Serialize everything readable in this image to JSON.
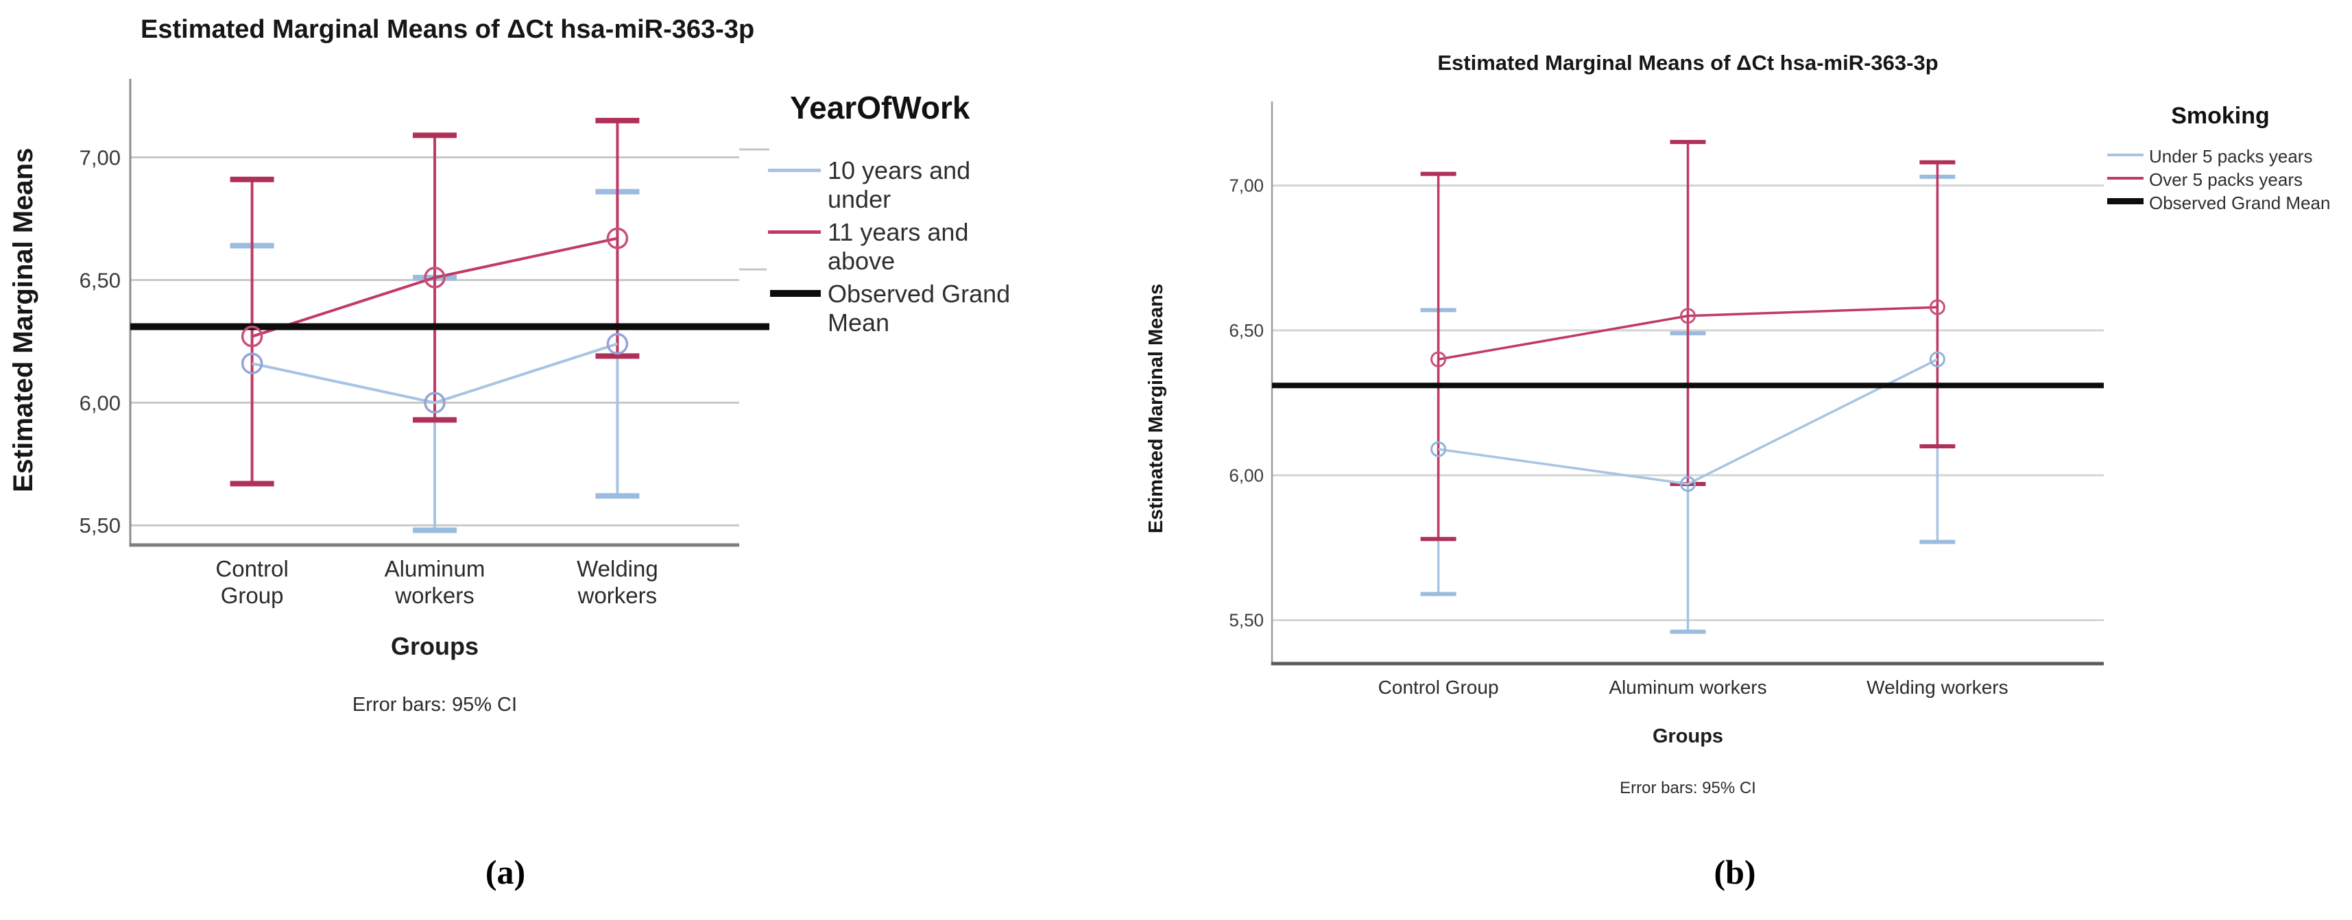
{
  "figure": {
    "background": "#ffffff",
    "captions": {
      "a": "(a)",
      "b": "(b)"
    }
  },
  "chart_data": [
    {
      "type": "line",
      "panel_label": "(a)",
      "title": "Estimated Marginal Means of ΔCt hsa-miR-363-3p",
      "xlabel": "Groups",
      "ylabel": "Estimated Marginal Means",
      "footnote": "Error bars: 95% CI",
      "legend_title": "YearOfWork",
      "legend_position": "right",
      "grid": true,
      "categories": [
        "Control Group",
        "Aluminum workers",
        "Welding workers"
      ],
      "categories_display": [
        "Control\nGroup",
        "Aluminum\nworkers",
        "Welding\nworkers"
      ],
      "ylim": [
        5.42,
        7.32
      ],
      "yticks": [
        7.0,
        6.5,
        6.0,
        5.5
      ],
      "ytick_labels": [
        "7,00",
        "6,50",
        "6,00",
        "5,50"
      ],
      "series": [
        {
          "name": "10 years and under",
          "color": "#a7c4e4",
          "cap_color": "#9bbcde",
          "marker_color": "#93a4d8",
          "values": [
            6.16,
            6.0,
            6.24
          ],
          "ci_low": [
            5.67,
            5.48,
            5.62
          ],
          "ci_high": [
            6.64,
            6.51,
            6.86
          ]
        },
        {
          "name": "11 years and above",
          "color": "#c03a64",
          "cap_color": "#b03158",
          "marker_color": "#c94f78",
          "values": [
            6.27,
            6.51,
            6.67
          ],
          "ci_low": [
            5.67,
            5.93,
            6.19
          ],
          "ci_high": [
            6.91,
            7.09,
            7.15
          ]
        }
      ],
      "grand_mean": {
        "label": "Observed Grand Mean",
        "value": 6.31,
        "color": "#0d0d0d"
      }
    },
    {
      "type": "line",
      "panel_label": "(b)",
      "title": "Estimated Marginal Means of ΔCt hsa-miR-363-3p",
      "xlabel": "Groups",
      "ylabel": "Estimated Marginal Means",
      "footnote": "Error bars: 95% CI",
      "legend_title": "Smoking",
      "legend_position": "right",
      "grid": true,
      "categories": [
        "Control Group",
        "Aluminum workers",
        "Welding workers"
      ],
      "categories_display": [
        "Control Group",
        "Aluminum workers",
        "Welding workers"
      ],
      "ylim": [
        5.35,
        7.29
      ],
      "yticks": [
        7.0,
        6.5,
        6.0,
        5.5
      ],
      "ytick_labels": [
        "7,00",
        "6,50",
        "6,00",
        "5,50"
      ],
      "series": [
        {
          "name": "Under 5 packs years",
          "color": "#a7c4e4",
          "cap_color": "#9bbcde",
          "marker_color": "#8fb2d8",
          "values": [
            6.09,
            5.97,
            6.4
          ],
          "ci_low": [
            5.59,
            5.46,
            5.77
          ],
          "ci_high": [
            6.57,
            6.49,
            7.03
          ]
        },
        {
          "name": "Over 5 packs years",
          "color": "#c03a64",
          "cap_color": "#b03158",
          "marker_color": "#c94f78",
          "values": [
            6.4,
            6.55,
            6.58
          ],
          "ci_low": [
            5.78,
            5.97,
            6.1
          ],
          "ci_high": [
            7.04,
            7.15,
            7.08
          ]
        }
      ],
      "grand_mean": {
        "label": "Observed Grand Mean",
        "value": 6.31,
        "color": "#0d0d0d"
      }
    }
  ]
}
